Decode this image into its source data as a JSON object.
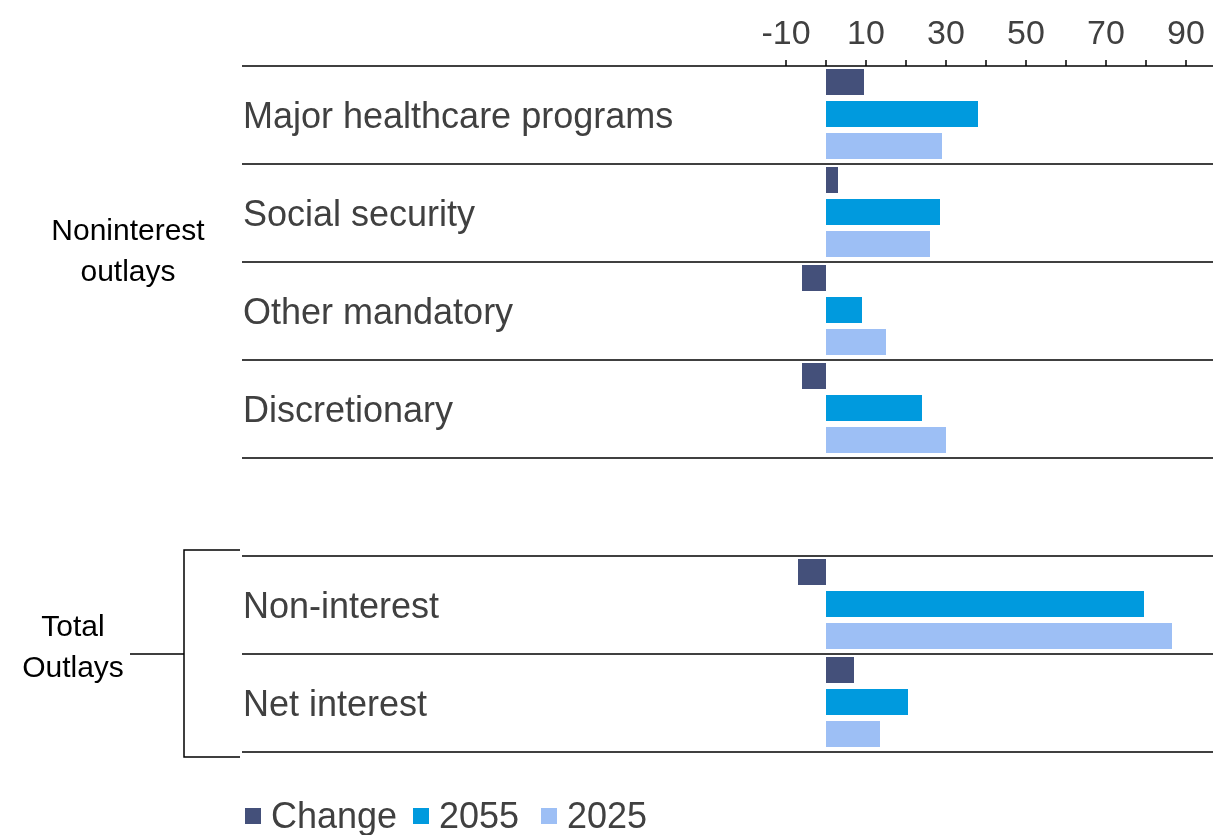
{
  "chart_data": {
    "type": "bar",
    "orientation": "horizontal",
    "categories": [
      "Major healthcare programs",
      "Social security",
      "Other mandatory",
      "Discretionary",
      null,
      "Non-interest",
      "Net interest"
    ],
    "series": [
      {
        "name": "Change",
        "color": "#44507a",
        "values": [
          9.5,
          3,
          -6,
          -6,
          null,
          -7,
          7
        ]
      },
      {
        "name": "2055",
        "color": "#009ade",
        "values": [
          38,
          28.5,
          9,
          24,
          null,
          79.5,
          20.5
        ]
      },
      {
        "name": "2025",
        "color": "#9dbff5",
        "values": [
          29,
          26,
          15,
          30,
          null,
          86.5,
          13.5
        ]
      }
    ],
    "xlim": [
      -146,
      97
    ],
    "xticks": [
      -10,
      {
        "value": 0,
        "label": null
      },
      10,
      {
        "value": 20,
        "label": null
      },
      30,
      {
        "value": 40,
        "label": null
      },
      50,
      {
        "value": 60,
        "label": null
      },
      70,
      {
        "value": 80,
        "label": null
      },
      90
    ],
    "annotations": [
      "Noninterest outlays",
      "Total Outlays"
    ],
    "grid": false,
    "legend": "bottom"
  }
}
